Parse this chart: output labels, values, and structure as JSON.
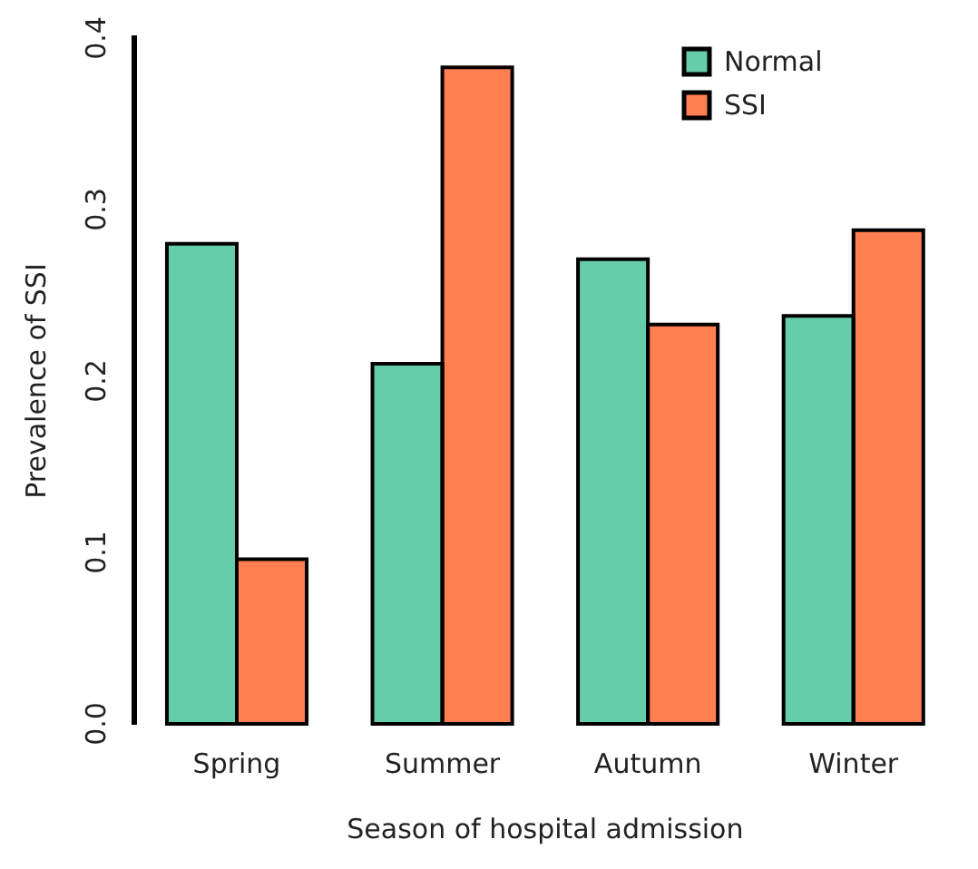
{
  "chart_data": {
    "type": "bar",
    "xlabel": "Season of hospital admission",
    "ylabel": "Prevalence of SSI",
    "categories": [
      "Spring",
      "Summer",
      "Autumn",
      "Winter"
    ],
    "series": [
      {
        "name": "Normal",
        "color": "#66cdaa",
        "values": [
          0.28,
          0.21,
          0.271,
          0.238
        ]
      },
      {
        "name": "SSI",
        "color": "#ff7f50",
        "values": [
          0.096,
          0.383,
          0.233,
          0.288
        ]
      }
    ],
    "ylim": [
      0,
      0.4
    ],
    "yticks": [
      {
        "value": 0,
        "label": "0.0"
      },
      0.1,
      0.2,
      0.3,
      0.4
    ],
    "grid": false,
    "legend": "top right"
  }
}
